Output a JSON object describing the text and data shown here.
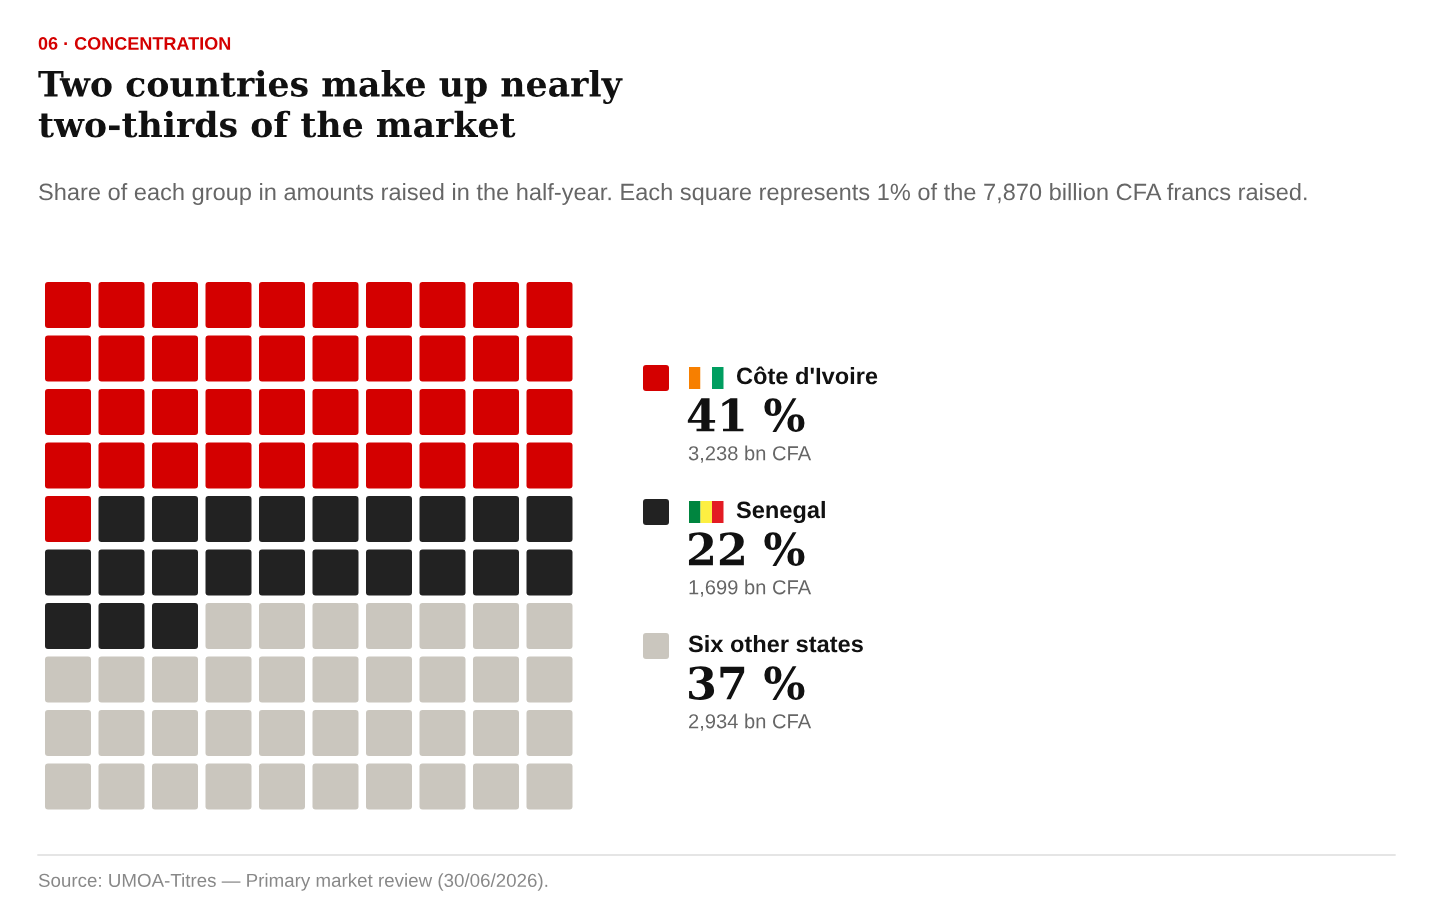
{
  "chart_data": {
    "type": "other",
    "title": "Two countries make up nearly two-thirds of the market",
    "subtitle": "Share of each group in amounts raised in the half-year. Each square represents 1% of the 7,870 billion CFA francs raised.",
    "categories": [
      "Côte d'Ivoire",
      "Senegal",
      "Six other states"
    ],
    "values": [
      41,
      22,
      37
    ],
    "colors": [
      "#d40000",
      "#222222",
      "#cac6be"
    ],
    "value_labels": [
      "41 %",
      "22 %",
      "37 %"
    ],
    "annotations": [
      "06 · CONCENTRATION",
      "3,238 bn CFA",
      "1,699 bn CFA",
      "2,934 bn CFA",
      "Source: UMOA-Titres — Primary market review (30/06/2026)."
    ]
  }
}
